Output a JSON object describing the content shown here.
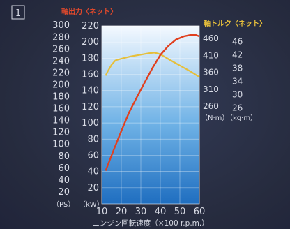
{
  "figure_label": "1",
  "chart_data": {
    "type": "line",
    "title_left": "軸出力〈ネット〉",
    "title_right": "軸トルク〈ネット〉",
    "xlabel": "エンジン回転速度（×100 r.p.m.）",
    "x_ticks": [
      10,
      20,
      30,
      40,
      50,
      60
    ],
    "xlim": [
      10,
      60
    ],
    "y_ps_ticks": [
      20,
      40,
      60,
      80,
      100,
      120,
      140,
      160,
      180,
      200,
      220,
      240,
      260,
      280,
      300
    ],
    "y_ps_unit": "（PS）",
    "y_kw_ticks": [
      20,
      40,
      60,
      80,
      100,
      120,
      140,
      160,
      180,
      200,
      220
    ],
    "y_kw_unit": "（kW）",
    "ylim_kw": [
      0,
      220
    ],
    "y_nm_ticks": [
      260,
      310,
      360,
      410,
      460
    ],
    "y_nm_unit": "（N·m）",
    "ylim_nm": [
      260,
      460
    ],
    "y_kgm_ticks": [
      26,
      30,
      34,
      38,
      42,
      46
    ],
    "y_kgm_unit": "（kg·m）",
    "colors": {
      "power": "#e0401f",
      "torque": "#e6bf3a"
    },
    "series": [
      {
        "axis": "kW",
        "x": [
          12,
          16,
          20,
          24,
          28,
          32,
          36,
          40,
          44,
          48,
          52,
          56,
          58,
          60
        ],
        "values": [
          41,
          66,
          90,
          113,
          132,
          150,
          168,
          184,
          195,
          203,
          207,
          209,
          209,
          207
        ]
      },
      {
        "axis": "N·m",
        "x": [
          12,
          13,
          15,
          17,
          20,
          25,
          30,
          34,
          37,
          39,
          41,
          45,
          50,
          55,
          60
        ],
        "values": [
          350,
          362,
          382,
          395,
          400,
          407,
          412,
          416,
          418,
          415,
          410,
          396,
          380,
          364,
          346
        ]
      }
    ]
  }
}
